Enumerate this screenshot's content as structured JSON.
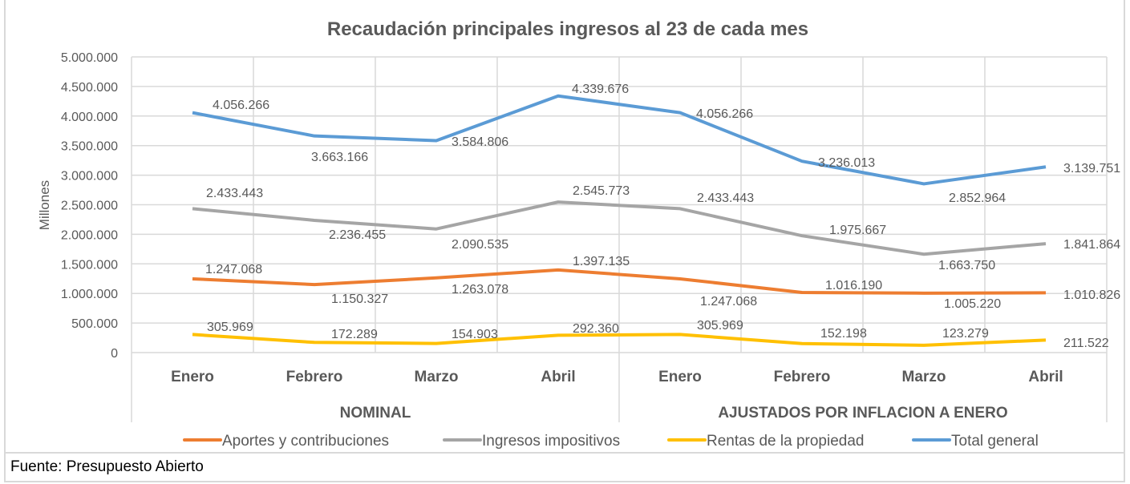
{
  "chart_data": {
    "type": "line",
    "title": "Recaudación principales ingresos al 23 de cada mes",
    "ylabel": "Millones",
    "xlabel": "",
    "ylim": [
      0,
      5000000
    ],
    "yticks": [
      "0",
      "500.000",
      "1.000.000",
      "1.500.000",
      "2.000.000",
      "2.500.000",
      "3.000.000",
      "3.500.000",
      "4.000.000",
      "4.500.000",
      "5.000.000"
    ],
    "categories": [
      "Enero",
      "Febrero",
      "Marzo",
      "Abril",
      "Enero",
      "Febrero",
      "Marzo",
      "Abril"
    ],
    "groups": [
      {
        "label": "NOMINAL",
        "span": 4
      },
      {
        "label": "AJUSTADOS POR INFLACION A ENERO",
        "span": 4
      }
    ],
    "grid": true,
    "legend_position": "bottom",
    "series": [
      {
        "name": "Aportes y contribuciones",
        "color": "#ED7D31",
        "values": [
          1247068,
          1150327,
          1263078,
          1397135,
          1247068,
          1016190,
          1005220,
          1010826
        ],
        "labels": [
          "1.247.068",
          "1.150.327",
          "1.263.078",
          "1.397.135",
          "1.247.068",
          "1.016.190",
          "1.005.220",
          "1.010.826"
        ]
      },
      {
        "name": "Ingresos impositivos",
        "color": "#A5A5A5",
        "values": [
          2433443,
          2236455,
          2090535,
          2545773,
          2433443,
          1975667,
          1663750,
          1841864
        ],
        "labels": [
          "2.433.443",
          "2.236.455",
          "2.090.535",
          "2.545.773",
          "2.433.443",
          "1.975.667",
          "1.663.750",
          "1.841.864"
        ]
      },
      {
        "name": "Rentas de la propiedad",
        "color": "#FFC000",
        "values": [
          305969,
          172289,
          154903,
          292360,
          305969,
          152198,
          123279,
          211522
        ],
        "labels": [
          "305.969",
          "172.289",
          "154.903",
          "292.360",
          "305.969",
          "152.198",
          "123.279",
          "211.522"
        ]
      },
      {
        "name": "Total general",
        "color": "#5B9BD5",
        "values": [
          4056266,
          3663166,
          3584806,
          4339676,
          4056266,
          3236013,
          2852964,
          3139751
        ],
        "labels": [
          "4.056.266",
          "3.663.166",
          "3.584.806",
          "4.339.676",
          "4.056.266",
          "3.236.013",
          "2.852.964",
          "3.139.751"
        ]
      }
    ]
  },
  "source": "Fuente: Presupuesto Abierto"
}
